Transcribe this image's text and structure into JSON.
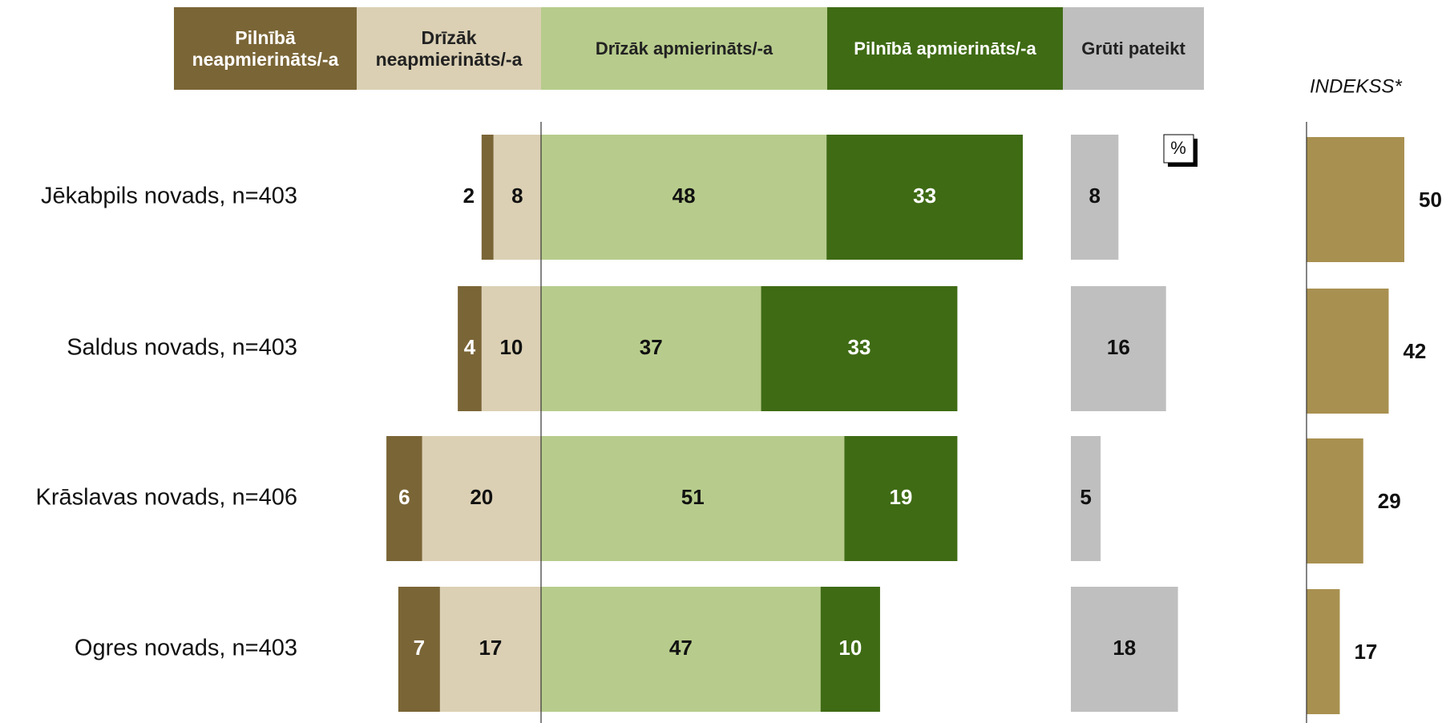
{
  "chart_data": {
    "type": "bar",
    "categories": [
      "Jēkabpils novads, n=403",
      "Saldus novads, n=403",
      "Krāslavas novads, n=406",
      "Ogres novads, n=403"
    ],
    "series": [
      {
        "name": "Pilnībā neapmierināts/-a",
        "color": "#7a6536",
        "values": [
          2,
          4,
          6,
          7
        ]
      },
      {
        "name": "Drīzāk neapmierināts/-a",
        "color": "#dbd0b4",
        "values": [
          8,
          10,
          20,
          17
        ]
      },
      {
        "name": "Drīzāk apmierināts/-a",
        "color": "#b7cc8c",
        "values": [
          48,
          37,
          51,
          47
        ]
      },
      {
        "name": "Pilnībā apmierināts/-a",
        "color": "#3f6b14",
        "values": [
          33,
          33,
          19,
          10
        ]
      },
      {
        "name": "Grūti pateikt",
        "color": "#bfbfbf",
        "values": [
          8,
          16,
          5,
          18
        ]
      }
    ],
    "unit_label": "%",
    "index": {
      "label": "INDEKSS*",
      "color": "#a89050",
      "values": [
        50,
        42,
        29,
        17
      ]
    }
  }
}
